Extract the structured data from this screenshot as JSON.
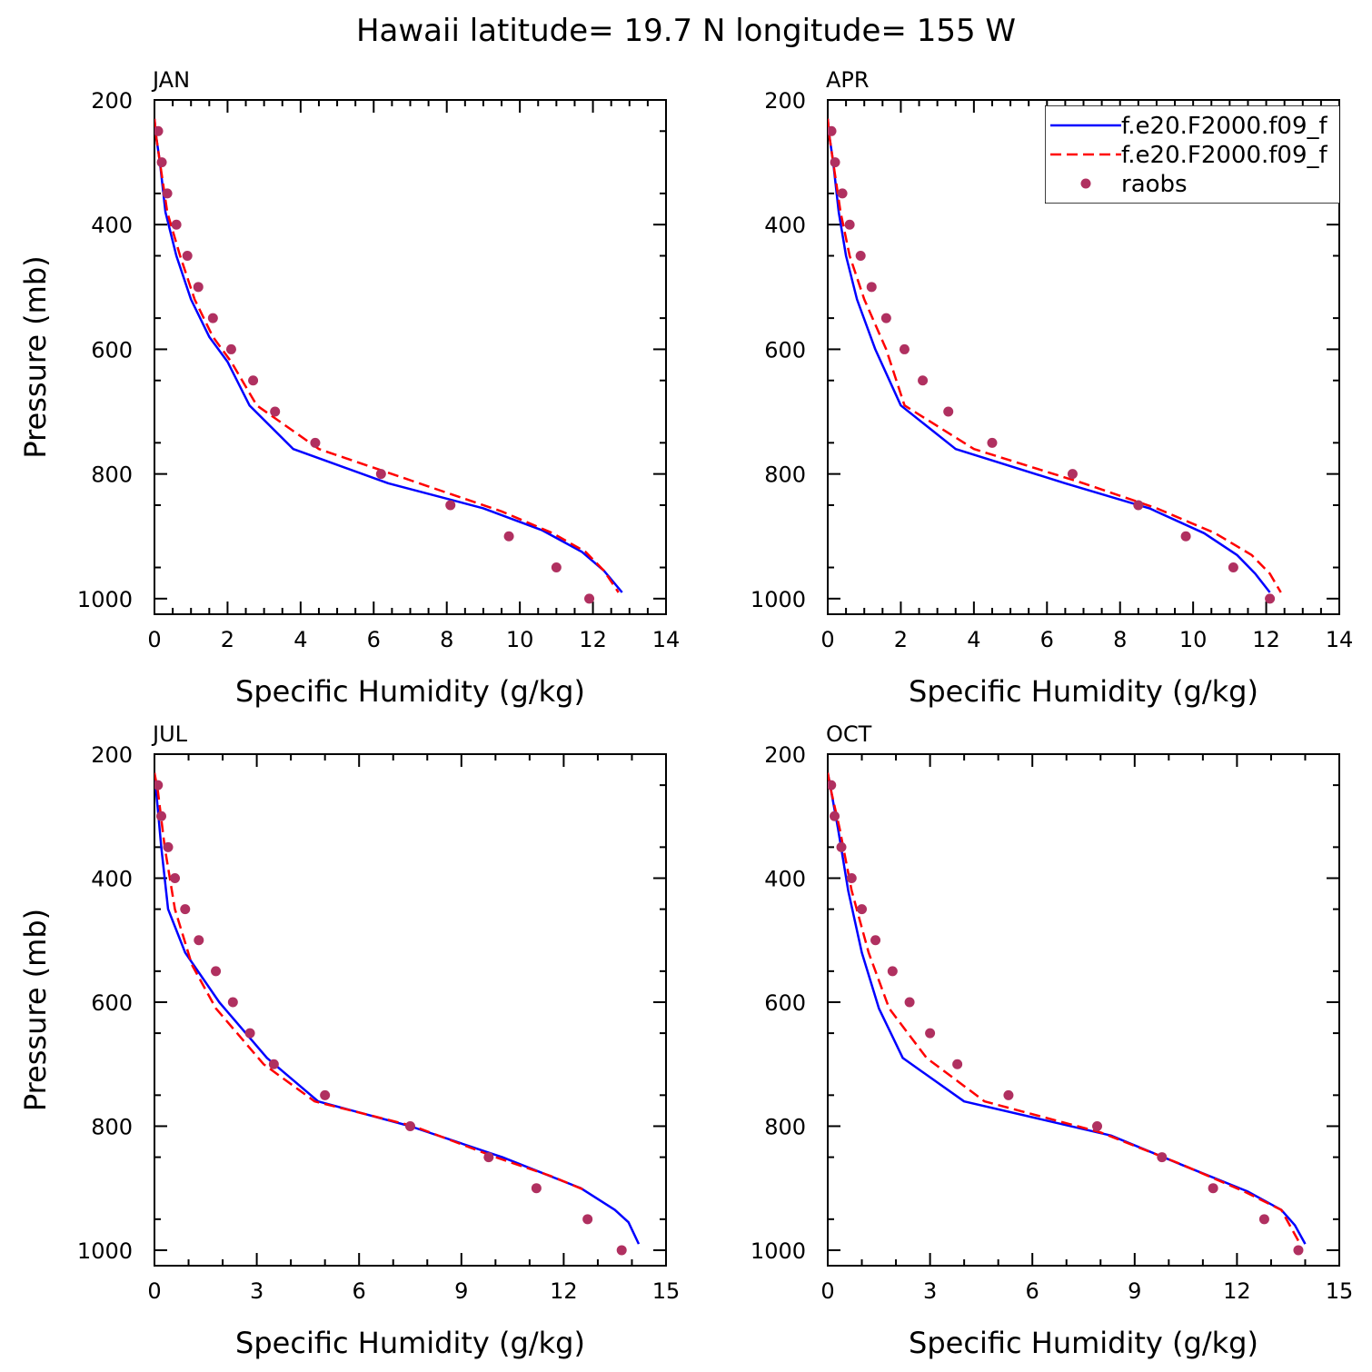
{
  "chart_data": {
    "type": "line",
    "title": "Hawaii  latitude= 19.7 N longitude= 155 W",
    "legend": {
      "placement": "top-right",
      "entries": [
        {
          "label": "f.e20.F2000.f09_f",
          "color": "#0000ff",
          "style": "solid"
        },
        {
          "label": "f.e20.F2000.f09_f",
          "color": "#ff0000",
          "style": "dashed"
        },
        {
          "label": "raobs",
          "color": "#b03060",
          "style": "marker"
        }
      ]
    },
    "panels": [
      {
        "label": "JAN",
        "xlabel": "Specific Humidity (g/kg)",
        "ylabel": "Pressure (mb)",
        "xlim": [
          0,
          14
        ],
        "ylim": [
          200,
          1025
        ],
        "xticks": [
          0,
          2,
          4,
          6,
          8,
          10,
          12,
          14
        ],
        "yticks": [
          200,
          400,
          600,
          800,
          1000
        ],
        "series": [
          {
            "name": "f.e20.F2000.f09_f",
            "style": "solid",
            "color": "#0000ff",
            "x": [
              0.0,
              0.05,
              0.15,
              0.3,
              0.6,
              1.0,
              1.5,
              2.0,
              2.6,
              3.8,
              6.4,
              9.0,
              10.6,
              11.7,
              12.3,
              12.8
            ],
            "y": [
              230,
              260,
              300,
              380,
              450,
              520,
              580,
              620,
              690,
              760,
              815,
              855,
              890,
              925,
              955,
              990
            ]
          },
          {
            "name": "f.e20.F2000.f09_f",
            "style": "dashed",
            "color": "#ff0000",
            "x": [
              0.0,
              0.05,
              0.15,
              0.35,
              0.7,
              1.1,
              1.6,
              2.1,
              2.8,
              4.5,
              7.5,
              9.5,
              10.9,
              11.8,
              12.3,
              12.7
            ],
            "y": [
              230,
              260,
              300,
              380,
              450,
              520,
              580,
              620,
              690,
              760,
              820,
              860,
              895,
              925,
              955,
              990
            ]
          }
        ],
        "points": {
          "name": "raobs",
          "color": "#b03060",
          "x": [
            0.1,
            0.2,
            0.35,
            0.6,
            0.9,
            1.2,
            1.6,
            2.1,
            2.7,
            3.3,
            4.4,
            6.2,
            8.1,
            9.7,
            11.0,
            11.9
          ],
          "y": [
            250,
            300,
            350,
            400,
            450,
            500,
            550,
            600,
            650,
            700,
            750,
            800,
            850,
            900,
            950,
            1000
          ]
        }
      },
      {
        "label": "APR",
        "xlabel": "Specific Humidity (g/kg)",
        "ylabel": "",
        "xlim": [
          0,
          14
        ],
        "ylim": [
          200,
          1025
        ],
        "xticks": [
          0,
          2,
          4,
          6,
          8,
          10,
          12,
          14
        ],
        "yticks": [
          200,
          400,
          600,
          800,
          1000
        ],
        "series": [
          {
            "name": "f.e20.F2000.f09_f",
            "style": "solid",
            "color": "#0000ff",
            "x": [
              0.0,
              0.05,
              0.15,
              0.3,
              0.5,
              0.8,
              1.3,
              2.0,
              3.5,
              6.5,
              8.8,
              10.3,
              11.2,
              11.7,
              12.1
            ],
            "y": [
              230,
              260,
              300,
              380,
              450,
              520,
              600,
              690,
              760,
              815,
              855,
              895,
              930,
              960,
              990
            ]
          },
          {
            "name": "f.e20.F2000.f09_f",
            "style": "dashed",
            "color": "#ff0000",
            "x": [
              0.0,
              0.05,
              0.15,
              0.35,
              0.6,
              1.0,
              1.6,
              2.1,
              4.0,
              7.0,
              9.0,
              10.6,
              11.6,
              12.1,
              12.4
            ],
            "y": [
              230,
              260,
              300,
              380,
              450,
              520,
              600,
              690,
              760,
              815,
              855,
              895,
              930,
              960,
              990
            ]
          }
        ],
        "points": {
          "name": "raobs",
          "color": "#b03060",
          "x": [
            0.1,
            0.2,
            0.4,
            0.6,
            0.9,
            1.2,
            1.6,
            2.1,
            2.6,
            3.3,
            4.5,
            6.7,
            8.5,
            9.8,
            11.1,
            12.1
          ],
          "y": [
            250,
            300,
            350,
            400,
            450,
            500,
            550,
            600,
            650,
            700,
            750,
            800,
            850,
            900,
            950,
            1000
          ]
        }
      },
      {
        "label": "JUL",
        "xlabel": "Specific Humidity (g/kg)",
        "ylabel": "Pressure (mb)",
        "xlim": [
          0,
          15
        ],
        "ylim": [
          200,
          1025
        ],
        "xticks": [
          0,
          3,
          6,
          9,
          12,
          15
        ],
        "yticks": [
          200,
          400,
          600,
          800,
          1000
        ],
        "series": [
          {
            "name": "f.e20.F2000.f09_f",
            "style": "solid",
            "color": "#0000ff",
            "x": [
              0.0,
              0.05,
              0.2,
              0.4,
              0.9,
              1.9,
              3.3,
              4.8,
              7.5,
              10.2,
              12.5,
              13.5,
              13.9,
              14.2
            ],
            "y": [
              230,
              260,
              350,
              450,
              520,
              600,
              690,
              760,
              800,
              850,
              900,
              935,
              955,
              990
            ]
          },
          {
            "name": "f.e20.F2000.f09_f",
            "style": "dashed",
            "color": "#ff0000",
            "x": [
              0.0,
              0.1,
              0.3,
              0.6,
              1.1,
              1.8,
              3.2,
              4.7,
              7.6,
              10.0,
              11.6,
              12.7
            ],
            "y": [
              230,
              260,
              350,
              450,
              540,
              610,
              700,
              760,
              800,
              850,
              880,
              905
            ]
          }
        ],
        "points": {
          "name": "raobs",
          "color": "#b03060",
          "x": [
            0.1,
            0.2,
            0.4,
            0.6,
            0.9,
            1.3,
            1.8,
            2.3,
            2.8,
            3.5,
            5.0,
            7.5,
            9.8,
            11.2,
            12.7,
            13.7
          ],
          "y": [
            250,
            300,
            350,
            400,
            450,
            500,
            550,
            600,
            650,
            700,
            750,
            800,
            850,
            900,
            950,
            1000
          ]
        }
      },
      {
        "label": "OCT",
        "xlabel": "Specific Humidity (g/kg)",
        "ylabel": "",
        "xlim": [
          0,
          15
        ],
        "ylim": [
          200,
          1025
        ],
        "xticks": [
          0,
          3,
          6,
          9,
          12,
          15
        ],
        "yticks": [
          200,
          400,
          600,
          800,
          1000
        ],
        "series": [
          {
            "name": "f.e20.F2000.f09_f",
            "style": "solid",
            "color": "#0000ff",
            "x": [
              0.0,
              0.1,
              0.3,
              0.6,
              1.0,
              1.5,
              2.2,
              4.0,
              8.3,
              10.5,
              12.3,
              13.3,
              13.7,
              14.0
            ],
            "y": [
              230,
              260,
              320,
              420,
              520,
              610,
              690,
              760,
              815,
              865,
              905,
              935,
              960,
              990
            ]
          },
          {
            "name": "f.e20.F2000.f09_f",
            "style": "dashed",
            "color": "#ff0000",
            "x": [
              0.0,
              0.1,
              0.35,
              0.7,
              1.2,
              1.8,
              2.9,
              4.6,
              8.0,
              10.3,
              12.2,
              13.3,
              13.8
            ],
            "y": [
              230,
              260,
              320,
              420,
              520,
              610,
              690,
              760,
              810,
              860,
              905,
              935,
              985
            ]
          }
        ],
        "points": {
          "name": "raobs",
          "color": "#b03060",
          "x": [
            0.1,
            0.2,
            0.4,
            0.7,
            1.0,
            1.4,
            1.9,
            2.4,
            3.0,
            3.8,
            5.3,
            7.9,
            9.8,
            11.3,
            12.8,
            13.8
          ],
          "y": [
            250,
            300,
            350,
            400,
            450,
            500,
            550,
            600,
            650,
            700,
            750,
            800,
            850,
            900,
            950,
            1000
          ]
        }
      }
    ]
  }
}
